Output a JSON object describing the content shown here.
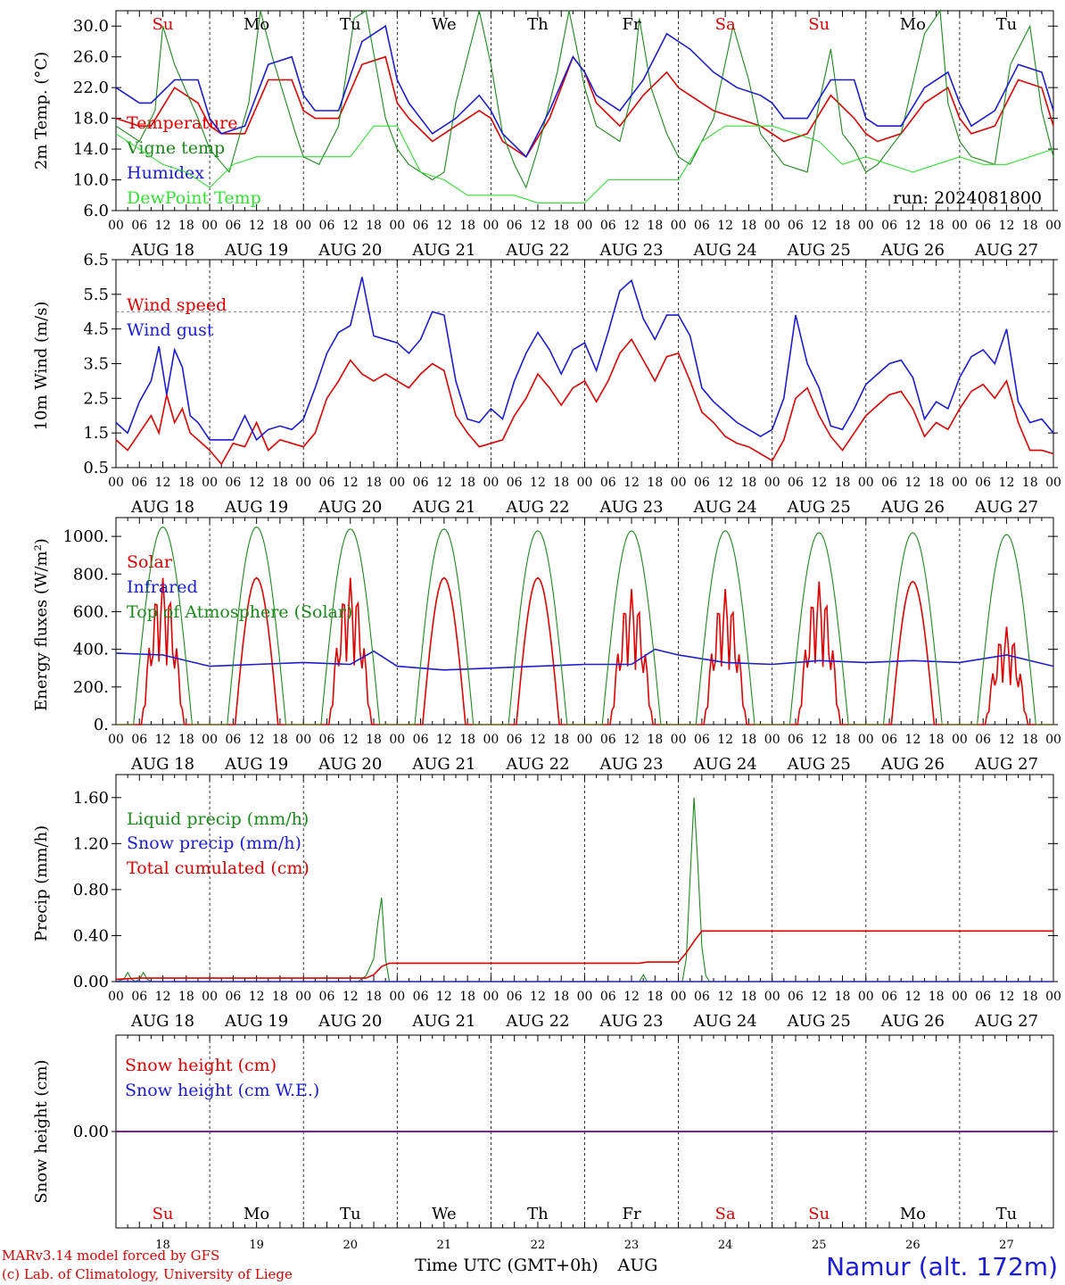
{
  "footer": {
    "credit_line1": "MARv3.14 model forced by GFS",
    "credit_line2": "(c) Lab. of Climatology, University of Liege",
    "location": "Namur (alt. 172m)",
    "time_label": "Time UTC (GMT+0h)",
    "month_label": "AUG"
  },
  "axes_common": {
    "hour_ticks": [
      "00",
      "06",
      "12",
      "18"
    ],
    "final_tick": "00",
    "date_labels": [
      "AUG 18",
      "AUG 19",
      "AUG 20",
      "AUG 21",
      "AUG 22",
      "AUG 23",
      "AUG 24",
      "AUG 25",
      "AUG 26",
      "AUG 27"
    ],
    "day_names": [
      "Su",
      "Mo",
      "Tu",
      "We",
      "Th",
      "Fr",
      "Sa",
      "Su",
      "Mo",
      "Tu"
    ],
    "day_numbers": [
      "18",
      "19",
      "20",
      "21",
      "22",
      "23",
      "24",
      "25",
      "26",
      "27"
    ],
    "weekend_color": "#e00000",
    "weekday_color": "#000000"
  },
  "chart_data": [
    {
      "type": "line",
      "ylabel": "2m Temp. (°C)",
      "ylim": [
        6,
        32
      ],
      "yticks": [
        "6.0",
        "10.0",
        "14.0",
        "18.0",
        "22.0",
        "26.0",
        "30.0"
      ],
      "annotation": "run: 2024081800",
      "x_unit": "hours since 2024-08-18 00 UTC",
      "series": [
        {
          "name": "Temperature",
          "color": "#e00000",
          "x": [
            0,
            6,
            9,
            15,
            21,
            24,
            27,
            33,
            39,
            45,
            48,
            51,
            57,
            63,
            69,
            72,
            75,
            81,
            87,
            93,
            96,
            99,
            105,
            111,
            117,
            120,
            123,
            129,
            135,
            141,
            144,
            147,
            153,
            159,
            165,
            168,
            171,
            177,
            183,
            189,
            192,
            195,
            201,
            207,
            213,
            216,
            219,
            225,
            231,
            237,
            240
          ],
          "y": [
            18,
            17,
            17,
            22,
            20,
            17,
            16,
            16,
            23,
            23,
            19,
            18,
            18,
            25,
            26,
            20,
            18,
            15,
            17,
            19,
            18,
            15,
            13,
            18,
            26,
            24,
            20,
            17,
            21,
            24,
            22,
            21,
            19,
            18,
            17,
            16,
            15,
            16,
            21,
            18,
            16,
            15,
            16,
            20,
            22,
            18,
            16,
            17,
            23,
            22,
            17
          ]
        },
        {
          "name": "Vigne temp",
          "color": "#1a8a1a",
          "x": [
            0,
            6,
            10,
            12,
            15,
            21,
            24,
            29,
            34,
            37,
            40,
            46,
            48,
            52,
            57,
            61,
            64,
            69,
            72,
            75,
            81,
            84,
            87,
            93,
            96,
            99,
            102,
            105,
            108,
            113,
            116,
            120,
            123,
            129,
            132,
            134,
            137,
            141,
            144,
            147,
            153,
            158,
            162,
            165,
            168,
            171,
            177,
            180,
            183,
            186,
            189,
            192,
            195,
            201,
            207,
            211,
            213,
            216,
            219,
            225,
            229,
            234,
            237,
            240
          ],
          "y": [
            17,
            15,
            19,
            30,
            25,
            18,
            14,
            11,
            20,
            32,
            26,
            16,
            13,
            12,
            17,
            31,
            32,
            18,
            14,
            12,
            10,
            11,
            20,
            32,
            25,
            16,
            12,
            9,
            14,
            24,
            32,
            22,
            17,
            15,
            21,
            31,
            22,
            16,
            13,
            12,
            18,
            30,
            23,
            16,
            14,
            12,
            11,
            20,
            27,
            16,
            14,
            11,
            12,
            16,
            29,
            32,
            20,
            15,
            13,
            12,
            25,
            30,
            19,
            13
          ]
        },
        {
          "name": "Humidex",
          "color": "#1c1cd6",
          "x": [
            0,
            6,
            9,
            15,
            21,
            24,
            27,
            33,
            39,
            45,
            48,
            51,
            57,
            63,
            69,
            72,
            75,
            81,
            87,
            93,
            96,
            99,
            105,
            111,
            117,
            120,
            123,
            129,
            135,
            141,
            144,
            147,
            153,
            159,
            165,
            168,
            171,
            177,
            183,
            189,
            192,
            195,
            201,
            207,
            213,
            216,
            219,
            225,
            231,
            237,
            240
          ],
          "y": [
            22,
            20,
            20,
            23,
            23,
            18,
            16,
            17,
            25,
            26,
            21,
            19,
            19,
            28,
            30,
            23,
            20,
            16,
            18,
            21,
            19,
            16,
            13,
            19,
            26,
            24,
            21,
            19,
            23,
            29,
            28,
            27,
            24,
            22,
            21,
            20,
            18,
            18,
            23,
            23,
            18,
            17,
            17,
            22,
            24,
            20,
            17,
            19,
            25,
            24,
            19
          ]
        },
        {
          "name": "DewPoint Temp",
          "color": "#33e033",
          "x": [
            0,
            6,
            12,
            18,
            24,
            30,
            36,
            42,
            48,
            54,
            60,
            66,
            72,
            78,
            84,
            90,
            96,
            102,
            108,
            114,
            120,
            126,
            132,
            138,
            144,
            150,
            156,
            162,
            168,
            174,
            180,
            186,
            192,
            198,
            204,
            210,
            216,
            222,
            228,
            234,
            240
          ],
          "y": [
            16,
            14,
            12,
            11,
            9,
            12,
            13,
            13,
            13,
            13,
            13,
            17,
            17,
            11,
            10,
            8,
            8,
            8,
            7,
            7,
            7,
            10,
            10,
            10,
            10,
            15,
            17,
            17,
            17,
            16,
            15,
            12,
            13,
            12,
            11,
            12,
            13,
            12,
            12,
            13,
            14
          ]
        }
      ]
    },
    {
      "type": "line",
      "ylabel": "10m Wind (m/s)",
      "ylim": [
        0.5,
        6.5
      ],
      "yticks": [
        "0.5",
        "1.5",
        "2.5",
        "3.5",
        "4.5",
        "5.5",
        "6.5"
      ],
      "reference_line": 5.0,
      "x_unit": "hours since 2024-08-18 00 UTC",
      "series": [
        {
          "name": "Wind speed",
          "color": "#e00000",
          "x": [
            0,
            3,
            6,
            9,
            11,
            13,
            15,
            17,
            19,
            21,
            24,
            27,
            30,
            33,
            36,
            39,
            42,
            45,
            48,
            51,
            54,
            57,
            60,
            63,
            66,
            69,
            72,
            75,
            78,
            81,
            84,
            87,
            90,
            93,
            96,
            99,
            102,
            105,
            108,
            111,
            114,
            117,
            120,
            123,
            126,
            129,
            132,
            135,
            138,
            141,
            144,
            147,
            150,
            153,
            156,
            159,
            162,
            165,
            168,
            171,
            174,
            177,
            180,
            183,
            186,
            189,
            192,
            195,
            198,
            201,
            204,
            207,
            210,
            213,
            216,
            219,
            222,
            225,
            228,
            231,
            234,
            237,
            240
          ],
          "y": [
            1.3,
            1.0,
            1.5,
            2.0,
            1.5,
            2.6,
            1.8,
            2.2,
            1.5,
            1.3,
            1.0,
            0.6,
            1.2,
            1.1,
            1.8,
            1.0,
            1.3,
            1.2,
            1.1,
            1.5,
            2.5,
            3.0,
            3.6,
            3.2,
            3.0,
            3.2,
            3.0,
            2.8,
            3.2,
            3.5,
            3.3,
            2.0,
            1.5,
            1.1,
            1.2,
            1.3,
            2.0,
            2.5,
            3.2,
            2.8,
            2.3,
            2.8,
            3.0,
            2.4,
            3.0,
            3.8,
            4.2,
            3.6,
            3.0,
            3.7,
            3.8,
            3.0,
            2.1,
            1.8,
            1.4,
            1.2,
            1.1,
            0.9,
            0.7,
            1.3,
            2.5,
            2.8,
            2.0,
            1.4,
            1.0,
            1.5,
            2.0,
            2.3,
            2.6,
            2.7,
            2.2,
            1.4,
            1.8,
            1.6,
            2.2,
            2.7,
            2.9,
            2.5,
            3.0,
            1.8,
            1.0,
            1.0,
            0.9
          ]
        },
        {
          "name": "Wind gust",
          "color": "#1c1cd6",
          "x": [
            0,
            3,
            6,
            9,
            11,
            13,
            15,
            17,
            19,
            21,
            24,
            27,
            30,
            33,
            36,
            39,
            42,
            45,
            48,
            51,
            54,
            57,
            60,
            63,
            66,
            69,
            72,
            75,
            78,
            81,
            84,
            87,
            90,
            93,
            96,
            99,
            102,
            105,
            108,
            111,
            114,
            117,
            120,
            123,
            126,
            129,
            132,
            135,
            138,
            141,
            144,
            147,
            150,
            153,
            156,
            159,
            162,
            165,
            168,
            171,
            174,
            177,
            180,
            183,
            186,
            189,
            192,
            195,
            198,
            201,
            204,
            207,
            210,
            213,
            216,
            219,
            222,
            225,
            228,
            231,
            234,
            237,
            240
          ],
          "y": [
            1.8,
            1.5,
            2.4,
            3.0,
            4.0,
            2.6,
            3.9,
            3.4,
            2.0,
            1.8,
            1.3,
            1.3,
            1.3,
            2.0,
            1.3,
            1.6,
            1.7,
            1.6,
            1.9,
            2.8,
            3.8,
            4.4,
            4.6,
            6.0,
            4.3,
            4.2,
            4.1,
            3.8,
            4.2,
            5.0,
            4.9,
            3.0,
            1.9,
            1.8,
            2.2,
            1.9,
            3.0,
            3.8,
            4.4,
            3.9,
            3.2,
            3.9,
            4.1,
            3.3,
            4.4,
            5.6,
            5.9,
            4.8,
            4.2,
            4.9,
            4.9,
            4.3,
            2.8,
            2.4,
            2.1,
            1.8,
            1.6,
            1.4,
            1.6,
            2.5,
            4.9,
            3.5,
            2.8,
            1.7,
            1.6,
            2.2,
            2.9,
            3.2,
            3.5,
            3.6,
            3.1,
            1.9,
            2.4,
            2.2,
            3.1,
            3.7,
            3.9,
            3.5,
            4.5,
            2.4,
            1.8,
            1.9,
            1.5
          ]
        }
      ]
    },
    {
      "type": "line",
      "ylabel": "Energy fluxes (W/m²)",
      "ylim": [
        0,
        1100
      ],
      "yticks": [
        "0.",
        "200.",
        "400.",
        "600.",
        "800.",
        "1000."
      ],
      "x_unit": "hours since 2024-08-18 00 UTC",
      "series": [
        {
          "name": "Solar",
          "color": "#e00000",
          "peaks": [
            780,
            780,
            780,
            780,
            780,
            720,
            720,
            760,
            760,
            520
          ],
          "clipped_days": [
            0,
            2,
            5,
            6,
            7,
            9
          ]
        },
        {
          "name": "Infrared",
          "color": "#1c1cd6",
          "x": [
            0,
            12,
            24,
            36,
            48,
            60,
            66,
            72,
            84,
            96,
            108,
            120,
            132,
            138,
            144,
            156,
            168,
            180,
            192,
            204,
            216,
            228,
            240
          ],
          "y": [
            380,
            370,
            310,
            320,
            330,
            320,
            390,
            310,
            290,
            300,
            310,
            320,
            320,
            400,
            370,
            330,
            320,
            340,
            330,
            340,
            330,
            370,
            310
          ]
        },
        {
          "name": "Top of Atmosphere (Solar)",
          "color": "#1a8a1a",
          "peaks": [
            1050,
            1050,
            1040,
            1040,
            1030,
            1030,
            1030,
            1020,
            1020,
            1010
          ]
        }
      ]
    },
    {
      "type": "line",
      "ylabel": "Precip (mm/h)",
      "ylim": [
        0,
        1.8
      ],
      "yticks": [
        "0.00",
        "0.40",
        "0.80",
        "1.20",
        "1.60"
      ],
      "x_unit": "hours since 2024-08-18 00 UTC",
      "series": [
        {
          "name": "Liquid precip (mm/h)",
          "color": "#1a8a1a",
          "x": [
            0,
            2,
            3,
            4,
            5,
            6,
            7,
            8,
            9,
            12,
            40,
            62,
            64,
            66,
            67,
            68,
            69,
            70,
            120,
            134,
            135,
            136,
            145,
            146,
            147,
            148,
            149,
            150,
            151,
            152,
            240
          ],
          "y": [
            0,
            0.02,
            0.08,
            0.02,
            0,
            0.02,
            0.08,
            0.02,
            0,
            0,
            0,
            0,
            0.05,
            0.2,
            0.5,
            0.73,
            0.2,
            0,
            0,
            0,
            0.06,
            0,
            0,
            0.2,
            0.9,
            1.6,
            1.0,
            0.3,
            0.05,
            0,
            0
          ]
        },
        {
          "name": "Snow precip (mm/h)",
          "color": "#1c1cd6",
          "x": [
            0,
            240
          ],
          "y": [
            0,
            0
          ]
        },
        {
          "name": "Total cumulated (cm)",
          "color": "#e00000",
          "x": [
            0,
            6,
            64,
            66,
            68,
            70,
            134,
            136,
            144,
            146,
            148,
            150,
            240
          ],
          "y": [
            0.02,
            0.03,
            0.03,
            0.06,
            0.13,
            0.16,
            0.16,
            0.17,
            0.17,
            0.25,
            0.35,
            0.44,
            0.44
          ]
        }
      ]
    },
    {
      "type": "line",
      "ylabel": "Snow height (cm)",
      "yticks": [
        "0.00"
      ],
      "x_unit": "hours since 2024-08-18 00 UTC",
      "series": [
        {
          "name": "Snow height (cm)",
          "color": "#e00000",
          "x": [
            0,
            240
          ],
          "y": [
            0,
            0
          ]
        },
        {
          "name": "Snow height (cm W.E.)",
          "color": "#1c1cd6",
          "x": [
            0,
            240
          ],
          "y": [
            0,
            0
          ]
        }
      ]
    }
  ]
}
